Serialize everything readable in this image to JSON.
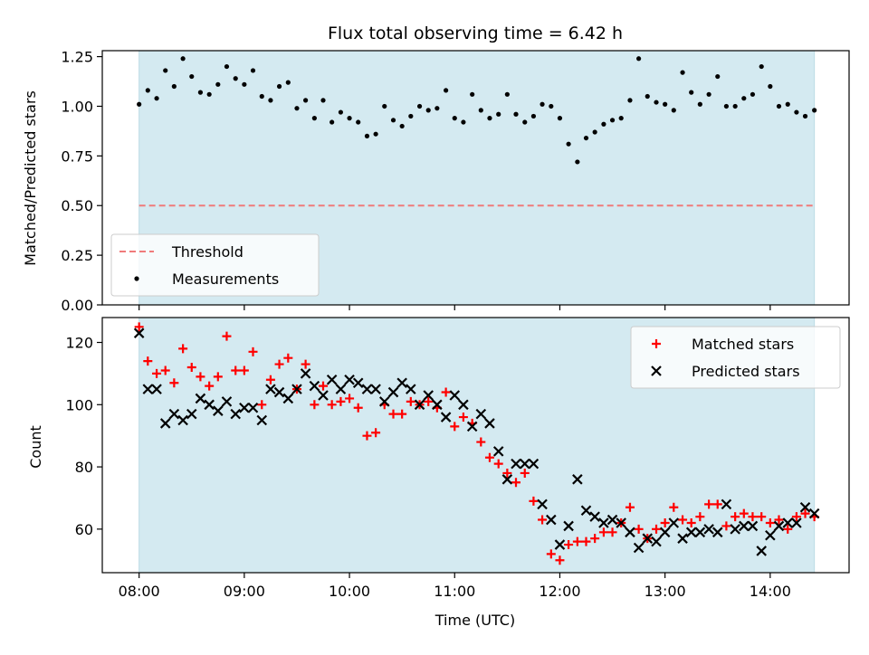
{
  "chart_data": [
    {
      "type": "scatter",
      "title": "Flux total observing time = 6.42 h",
      "xlabel": "",
      "ylabel": "Matched/Predicted stars",
      "ylim": [
        0,
        1.28
      ],
      "yticks": [
        "0.00",
        "0.25",
        "0.50",
        "0.75",
        "1.00",
        "1.25"
      ],
      "ytick_values": [
        0,
        0.25,
        0.5,
        0.75,
        1.0,
        1.25
      ],
      "xlim": [
        -0.35,
        6.75
      ],
      "shaded_span": [
        0,
        6.42
      ],
      "shade_color": "#d4eaf1",
      "threshold": {
        "name": "Threshold",
        "value": 0.5,
        "color": "#f07b7b",
        "style": "dashed"
      },
      "legend": {
        "placement": "lower-left",
        "entries": [
          "Threshold",
          "Measurements"
        ]
      },
      "series": [
        {
          "name": "Measurements",
          "color": "#000000",
          "marker": "dot",
          "x": [
            0.0,
            0.083,
            0.167,
            0.25,
            0.333,
            0.417,
            0.5,
            0.583,
            0.667,
            0.75,
            0.833,
            0.917,
            1.0,
            1.083,
            1.167,
            1.25,
            1.333,
            1.417,
            1.5,
            1.583,
            1.667,
            1.75,
            1.833,
            1.917,
            2.0,
            2.083,
            2.167,
            2.25,
            2.333,
            2.417,
            2.5,
            2.583,
            2.667,
            2.75,
            2.833,
            2.917,
            3.0,
            3.083,
            3.167,
            3.25,
            3.333,
            3.417,
            3.5,
            3.583,
            3.667,
            3.75,
            3.833,
            3.917,
            4.0,
            4.083,
            4.167,
            4.25,
            4.333,
            4.417,
            4.5,
            4.583,
            4.667,
            4.75,
            4.833,
            4.917,
            5.0,
            5.083,
            5.167,
            5.25,
            5.333,
            5.417,
            5.5,
            5.583,
            5.667,
            5.75,
            5.833,
            5.917,
            6.0,
            6.083,
            6.167,
            6.25,
            6.333,
            6.42
          ],
          "y": [
            1.01,
            1.08,
            1.04,
            1.18,
            1.1,
            1.24,
            1.15,
            1.07,
            1.06,
            1.11,
            1.2,
            1.14,
            1.11,
            1.18,
            1.05,
            1.03,
            1.1,
            1.12,
            0.99,
            1.03,
            0.94,
            1.03,
            0.92,
            0.97,
            0.94,
            0.92,
            0.85,
            0.86,
            1.0,
            0.93,
            0.9,
            0.95,
            1.0,
            0.98,
            0.99,
            1.08,
            0.94,
            0.92,
            1.06,
            0.98,
            0.94,
            0.96,
            1.06,
            0.96,
            0.92,
            0.95,
            1.01,
            1.0,
            0.94,
            0.81,
            0.72,
            0.84,
            0.87,
            0.91,
            0.93,
            0.94,
            1.03,
            1.24,
            1.05,
            1.02,
            1.01,
            0.98,
            1.17,
            1.07,
            1.01,
            1.06,
            1.15,
            1.0,
            1.0,
            1.04,
            1.06,
            1.2,
            1.1,
            1.0,
            1.01,
            0.97,
            0.95,
            0.98
          ]
        }
      ]
    },
    {
      "type": "scatter",
      "title": "",
      "xlabel": "Time (UTC)",
      "ylabel": "Count",
      "ylim": [
        46,
        128
      ],
      "yticks": [
        "60",
        "80",
        "100",
        "120"
      ],
      "ytick_values": [
        60,
        80,
        100,
        120
      ],
      "xlim": [
        -0.35,
        6.75
      ],
      "xticks": [
        "08:00",
        "09:00",
        "10:00",
        "11:00",
        "12:00",
        "13:00",
        "14:00"
      ],
      "xtick_values": [
        0,
        1,
        2,
        3,
        4,
        5,
        6
      ],
      "shaded_span": [
        0,
        6.42
      ],
      "shade_color": "#d4eaf1",
      "legend": {
        "placement": "top-right",
        "entries": [
          "Matched stars",
          "Predicted stars"
        ]
      },
      "series": [
        {
          "name": "Matched stars",
          "color": "#ff0000",
          "marker": "plus",
          "x": [
            0.0,
            0.083,
            0.167,
            0.25,
            0.333,
            0.417,
            0.5,
            0.583,
            0.667,
            0.75,
            0.833,
            0.917,
            1.0,
            1.083,
            1.167,
            1.25,
            1.333,
            1.417,
            1.5,
            1.583,
            1.667,
            1.75,
            1.833,
            1.917,
            2.0,
            2.083,
            2.167,
            2.25,
            2.333,
            2.417,
            2.5,
            2.583,
            2.667,
            2.75,
            2.833,
            2.917,
            3.0,
            3.083,
            3.167,
            3.25,
            3.333,
            3.417,
            3.5,
            3.583,
            3.667,
            3.75,
            3.833,
            3.917,
            4.0,
            4.083,
            4.167,
            4.25,
            4.333,
            4.417,
            4.5,
            4.583,
            4.667,
            4.75,
            4.833,
            4.917,
            5.0,
            5.083,
            5.167,
            5.25,
            5.333,
            5.417,
            5.5,
            5.583,
            5.667,
            5.75,
            5.833,
            5.917,
            6.0,
            6.083,
            6.167,
            6.25,
            6.333,
            6.42
          ],
          "y": [
            125,
            114,
            110,
            111,
            107,
            118,
            112,
            109,
            106,
            109,
            122,
            111,
            111,
            117,
            100,
            108,
            113,
            115,
            105,
            113,
            100,
            106,
            100,
            101,
            102,
            99,
            90,
            91,
            100,
            97,
            97,
            101,
            100,
            101,
            99,
            104,
            93,
            96,
            94,
            88,
            83,
            81,
            78,
            75,
            78,
            69,
            63,
            52,
            50,
            55,
            56,
            56,
            57,
            59,
            59,
            62,
            67,
            60,
            57,
            60,
            62,
            67,
            63,
            62,
            64,
            68,
            68,
            61,
            64,
            65,
            64,
            64,
            62,
            63,
            60,
            64,
            65,
            64
          ]
        },
        {
          "name": "Predicted stars",
          "color": "#000000",
          "marker": "x",
          "x": [
            0.0,
            0.083,
            0.167,
            0.25,
            0.333,
            0.417,
            0.5,
            0.583,
            0.667,
            0.75,
            0.833,
            0.917,
            1.0,
            1.083,
            1.167,
            1.25,
            1.333,
            1.417,
            1.5,
            1.583,
            1.667,
            1.75,
            1.833,
            1.917,
            2.0,
            2.083,
            2.167,
            2.25,
            2.333,
            2.417,
            2.5,
            2.583,
            2.667,
            2.75,
            2.833,
            2.917,
            3.0,
            3.083,
            3.167,
            3.25,
            3.333,
            3.417,
            3.5,
            3.583,
            3.667,
            3.75,
            3.833,
            3.917,
            4.0,
            4.083,
            4.167,
            4.25,
            4.333,
            4.417,
            4.5,
            4.583,
            4.667,
            4.75,
            4.833,
            4.917,
            5.0,
            5.083,
            5.167,
            5.25,
            5.333,
            5.417,
            5.5,
            5.583,
            5.667,
            5.75,
            5.833,
            5.917,
            6.0,
            6.083,
            6.167,
            6.25,
            6.333,
            6.42
          ],
          "y": [
            123,
            105,
            105,
            94,
            97,
            95,
            97,
            102,
            100,
            98,
            101,
            97,
            99,
            99,
            95,
            105,
            104,
            102,
            105,
            110,
            106,
            103,
            108,
            105,
            108,
            107,
            105,
            105,
            101,
            104,
            107,
            105,
            100,
            103,
            100,
            96,
            103,
            100,
            93,
            97,
            94,
            85,
            76,
            81,
            81,
            81,
            68,
            63,
            55,
            61,
            76,
            66,
            64,
            62,
            63,
            62,
            59,
            54,
            57,
            56,
            59,
            62,
            57,
            59,
            59,
            60,
            59,
            68,
            60,
            61,
            61,
            53,
            58,
            61,
            62,
            62,
            67,
            65
          ]
        }
      ]
    }
  ]
}
